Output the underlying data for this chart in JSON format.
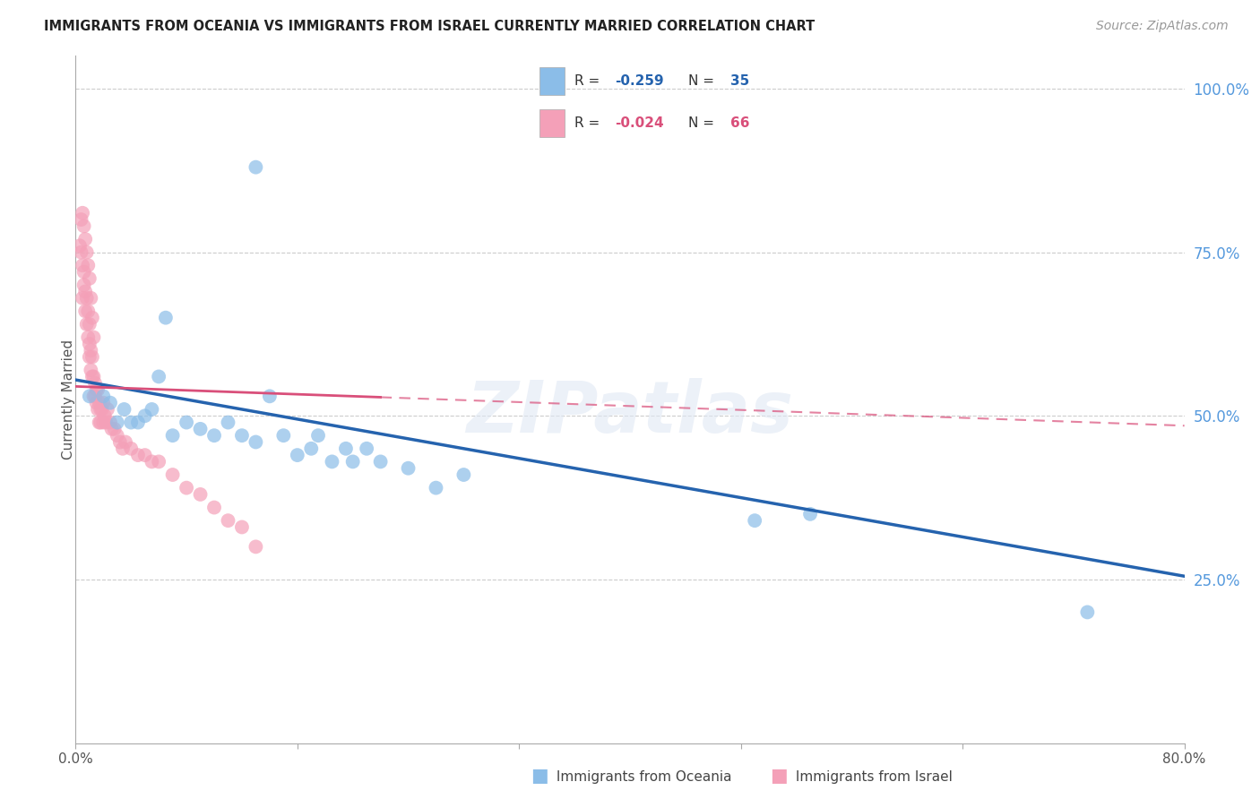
{
  "title": "IMMIGRANTS FROM OCEANIA VS IMMIGRANTS FROM ISRAEL CURRENTLY MARRIED CORRELATION CHART",
  "source": "Source: ZipAtlas.com",
  "ylabel": "Currently Married",
  "right_yticks": [
    "100.0%",
    "75.0%",
    "50.0%",
    "25.0%"
  ],
  "right_ytick_vals": [
    1.0,
    0.75,
    0.5,
    0.25
  ],
  "xmin": 0.0,
  "xmax": 0.8,
  "ymin": 0.0,
  "ymax": 1.05,
  "legend_r_oceania": "-0.259",
  "legend_n_oceania": "35",
  "legend_r_israel": "-0.024",
  "legend_n_israel": "66",
  "color_oceania": "#8bbde8",
  "color_israel": "#f4a0b8",
  "color_oceania_line": "#2563ae",
  "color_israel_line": "#d94f7a",
  "watermark": "ZIPatlas",
  "oceania_scatter_x": [
    0.13,
    0.01,
    0.02,
    0.025,
    0.03,
    0.035,
    0.04,
    0.045,
    0.05,
    0.055,
    0.06,
    0.065,
    0.07,
    0.08,
    0.09,
    0.1,
    0.11,
    0.12,
    0.13,
    0.14,
    0.15,
    0.16,
    0.17,
    0.175,
    0.185,
    0.195,
    0.2,
    0.21,
    0.22,
    0.24,
    0.26,
    0.28,
    0.49,
    0.53,
    0.73
  ],
  "oceania_scatter_y": [
    0.88,
    0.53,
    0.53,
    0.52,
    0.49,
    0.51,
    0.49,
    0.49,
    0.5,
    0.51,
    0.56,
    0.65,
    0.47,
    0.49,
    0.48,
    0.47,
    0.49,
    0.47,
    0.46,
    0.53,
    0.47,
    0.44,
    0.45,
    0.47,
    0.43,
    0.45,
    0.43,
    0.45,
    0.43,
    0.42,
    0.39,
    0.41,
    0.34,
    0.35,
    0.2
  ],
  "israel_scatter_x": [
    0.003,
    0.004,
    0.005,
    0.005,
    0.006,
    0.006,
    0.007,
    0.007,
    0.008,
    0.008,
    0.009,
    0.009,
    0.01,
    0.01,
    0.01,
    0.011,
    0.011,
    0.012,
    0.012,
    0.013,
    0.013,
    0.014,
    0.014,
    0.015,
    0.015,
    0.016,
    0.016,
    0.017,
    0.017,
    0.018,
    0.018,
    0.019,
    0.02,
    0.02,
    0.021,
    0.022,
    0.023,
    0.025,
    0.026,
    0.028,
    0.03,
    0.032,
    0.034,
    0.036,
    0.04,
    0.045,
    0.05,
    0.055,
    0.06,
    0.07,
    0.08,
    0.09,
    0.1,
    0.11,
    0.12,
    0.13,
    0.004,
    0.005,
    0.006,
    0.007,
    0.008,
    0.009,
    0.01,
    0.011,
    0.012,
    0.013
  ],
  "israel_scatter_y": [
    0.76,
    0.75,
    0.73,
    0.68,
    0.72,
    0.7,
    0.69,
    0.66,
    0.64,
    0.68,
    0.62,
    0.66,
    0.64,
    0.61,
    0.59,
    0.6,
    0.57,
    0.56,
    0.59,
    0.56,
    0.53,
    0.55,
    0.53,
    0.52,
    0.54,
    0.51,
    0.54,
    0.49,
    0.52,
    0.51,
    0.49,
    0.51,
    0.52,
    0.49,
    0.5,
    0.49,
    0.51,
    0.49,
    0.48,
    0.48,
    0.47,
    0.46,
    0.45,
    0.46,
    0.45,
    0.44,
    0.44,
    0.43,
    0.43,
    0.41,
    0.39,
    0.38,
    0.36,
    0.34,
    0.33,
    0.3,
    0.8,
    0.81,
    0.79,
    0.77,
    0.75,
    0.73,
    0.71,
    0.68,
    0.65,
    0.62
  ],
  "oceania_line_x0": 0.0,
  "oceania_line_x1": 0.8,
  "oceania_line_y0": 0.555,
  "oceania_line_y1": 0.255,
  "israel_line_x0": 0.0,
  "israel_line_x1": 0.8,
  "israel_line_y0": 0.545,
  "israel_line_y1": 0.485
}
